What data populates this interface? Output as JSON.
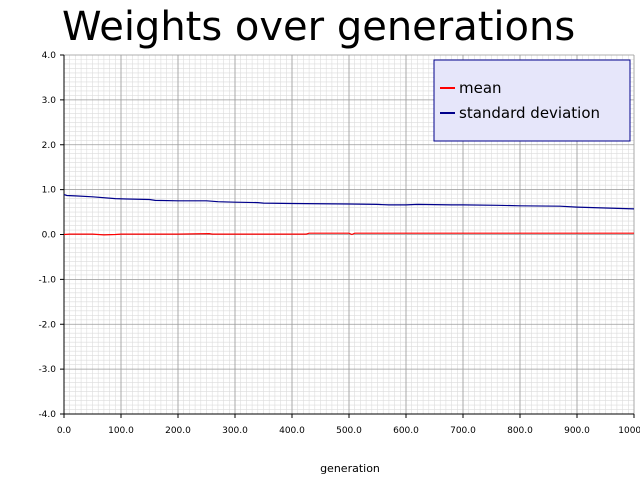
{
  "chart_data": {
    "type": "line",
    "title": "Weights over generations",
    "xlabel": "generation",
    "ylabel": "",
    "xlim": [
      0,
      1000
    ],
    "ylim": [
      -4,
      4
    ],
    "xticks": [
      "0.0",
      "100.0",
      "200.0",
      "300.0",
      "400.0",
      "500.0",
      "600.0",
      "700.0",
      "800.0",
      "900.0",
      "1000.0"
    ],
    "yticks": [
      "4.0",
      "3.0",
      "2.0",
      "1.0",
      "0.0",
      "-1.0",
      "-2.0",
      "-3.0",
      "-4.0"
    ],
    "grid": true,
    "legend_position": "top-right",
    "series": [
      {
        "name": "mean",
        "color": "#ff0000",
        "x": [
          0,
          10,
          50,
          70,
          90,
          100,
          200,
          255,
          260,
          300,
          400,
          425,
          430,
          500,
          505,
          510,
          600,
          700,
          800,
          900,
          1000
        ],
        "y": [
          0.0,
          0.01,
          0.01,
          -0.01,
          0.0,
          0.01,
          0.01,
          0.02,
          0.01,
          0.01,
          0.01,
          0.01,
          0.03,
          0.03,
          0.0,
          0.03,
          0.03,
          0.03,
          0.03,
          0.03,
          0.03
        ]
      },
      {
        "name": "standard deviation",
        "color": "#00008b",
        "x": [
          0,
          5,
          20,
          50,
          90,
          110,
          150,
          160,
          200,
          250,
          270,
          300,
          340,
          350,
          400,
          500,
          550,
          570,
          600,
          620,
          680,
          700,
          760,
          800,
          870,
          900,
          950,
          1000
        ],
        "y": [
          0.89,
          0.87,
          0.86,
          0.84,
          0.8,
          0.79,
          0.78,
          0.76,
          0.75,
          0.75,
          0.73,
          0.72,
          0.71,
          0.7,
          0.69,
          0.68,
          0.67,
          0.66,
          0.66,
          0.67,
          0.66,
          0.66,
          0.65,
          0.64,
          0.63,
          0.61,
          0.59,
          0.57
        ]
      }
    ]
  }
}
